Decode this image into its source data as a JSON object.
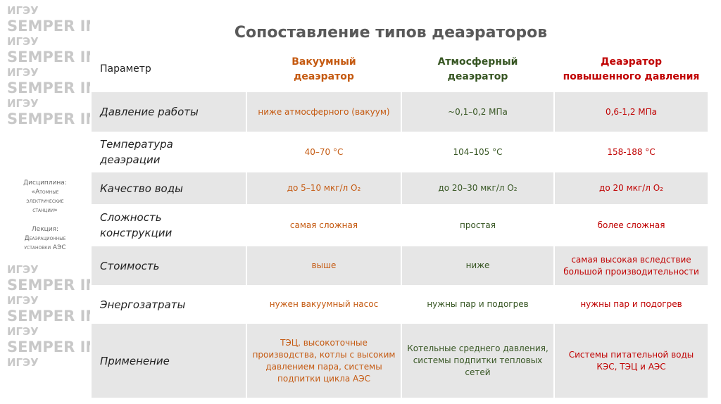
{
  "title": "Сопоставление типов деаэраторов",
  "sidebar": {
    "watermark": [
      "ИГЭУ",
      "SEMPER IN MOTU"
    ],
    "discipline_label": "Дисциплина:",
    "discipline": "«Атомные\nэлектрические\nстанции»",
    "lecture_label": "Лекция:",
    "lecture": "Деаэрационные\nустановки АЭС"
  },
  "table": {
    "header": [
      "Параметр",
      "Вакуумный\nдеаэратор",
      "Атмосферный\nдеаэратор",
      "Деаэратор\nповышенного давления"
    ],
    "rows": [
      [
        "Давление работы",
        "ниже атмосферного (вакуум)",
        "~0,1–0,2 МПа",
        "0,6-1,2 МПа"
      ],
      [
        "Температура\nдеаэрации",
        "40–70 °C",
        "104–105 °C",
        "158-188 °C"
      ],
      [
        "Качество воды",
        "до 5–10 мкг/л O₂",
        "до 20–30 мкг/л O₂",
        "до 20 мкг/л O₂"
      ],
      [
        "Сложность\nконструкции",
        "самая сложная",
        "простая",
        "более сложная"
      ],
      [
        "Стоимость",
        "выше",
        "ниже",
        "самая высокая вследствие\nбольшой производительности"
      ],
      [
        "Энергозатраты",
        "нужен вакуумный насос",
        "нужны пар и подогрев",
        "нужны пар и подогрев"
      ],
      [
        "Применение",
        "ТЭЦ, высокоточные\nпроизводства, котлы с высоким\nдавлением пара, системы\nподпитки цикла АЭС",
        "Котельные среднего давления,\nсистемы подпитки тепловых\nсетей",
        "Системы питательной воды\nКЭС, ТЭЦ и АЭС"
      ]
    ]
  }
}
